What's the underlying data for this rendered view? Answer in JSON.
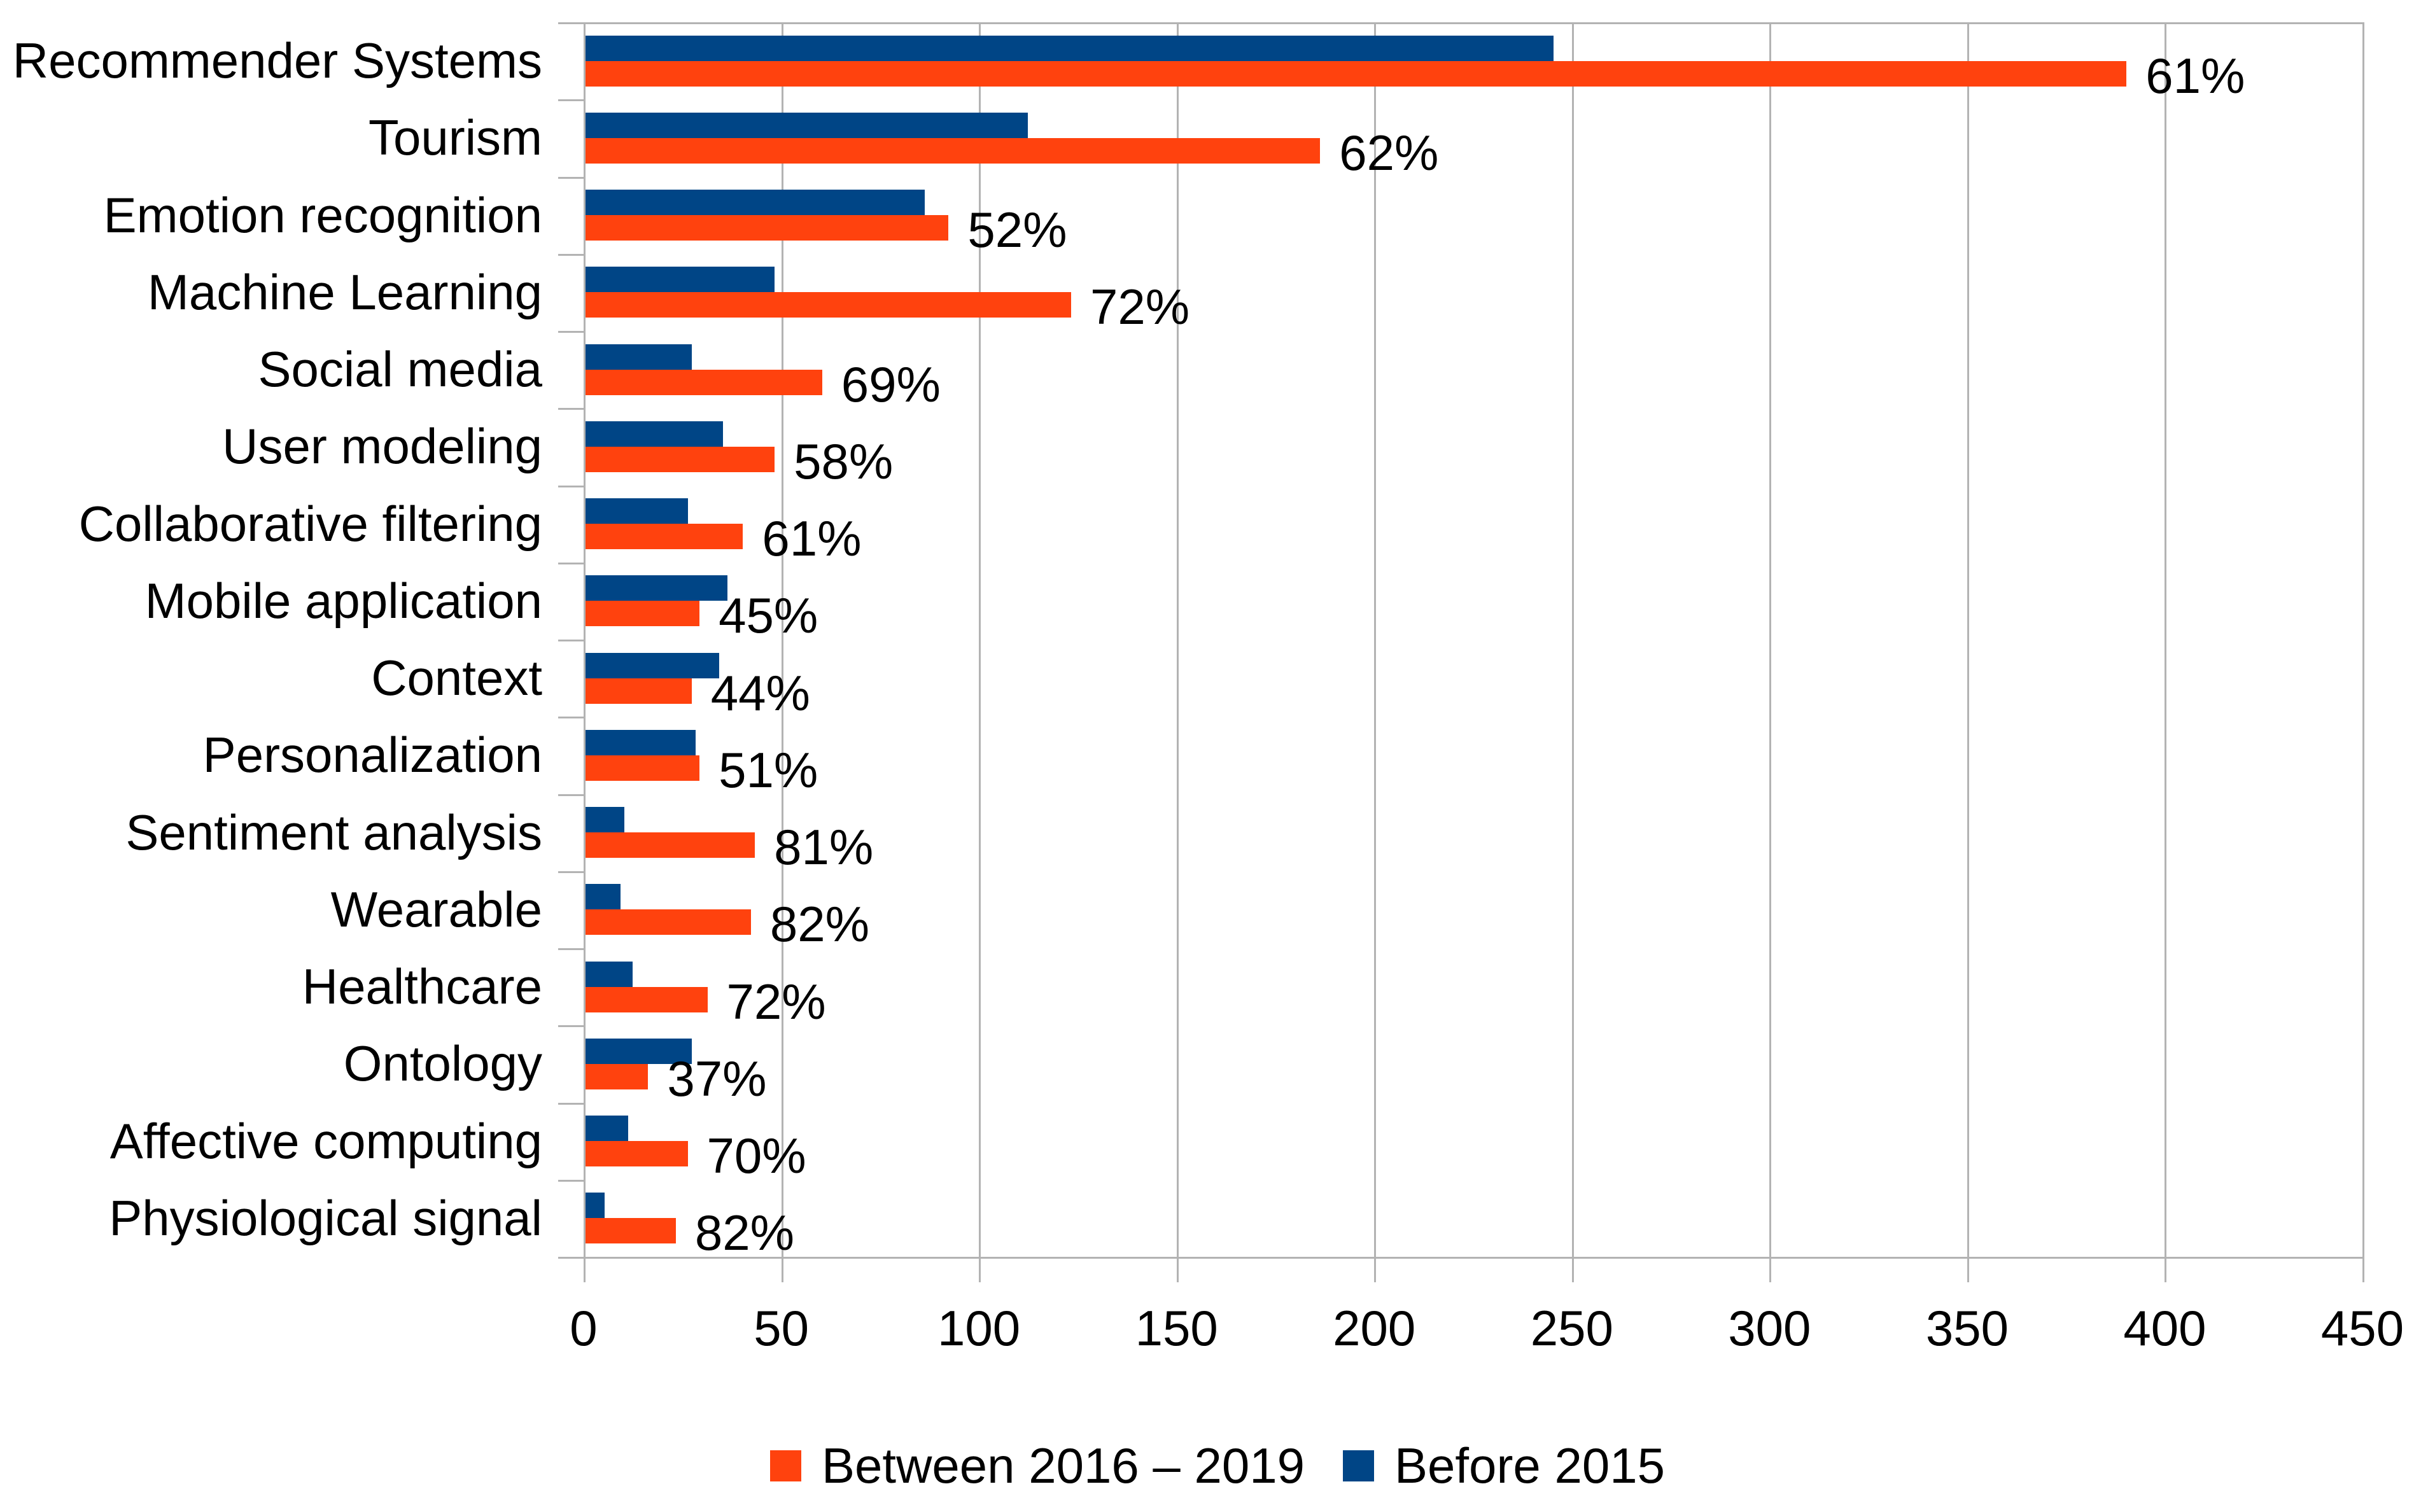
{
  "chart_data": {
    "type": "bar",
    "orientation": "horizontal",
    "title": "",
    "xlabel": "",
    "ylabel": "",
    "xlim": [
      0,
      450
    ],
    "x_ticks": [
      "0",
      "50",
      "100",
      "150",
      "200",
      "250",
      "300",
      "350",
      "400",
      "450"
    ],
    "grid": "vertical",
    "legend_position": "bottom",
    "categories": [
      "Recommender Systems",
      "Tourism",
      "Emotion recognition",
      "Machine Learning",
      "Social media",
      "User modeling",
      "Collaborative filtering",
      "Mobile application",
      "Context",
      "Personalization",
      "Sentiment analysis",
      "Wearable",
      "Healthcare",
      "Ontology",
      "Affective computing",
      "Physiological signal"
    ],
    "series": [
      {
        "name": "Before 2015",
        "color": "#004586",
        "values": [
          245,
          112,
          86,
          48,
          27,
          35,
          26,
          36,
          34,
          28,
          10,
          9,
          12,
          27,
          11,
          5
        ]
      },
      {
        "name": "Between 2016 – 2019",
        "color": "#FF420E",
        "values": [
          390,
          186,
          92,
          123,
          60,
          48,
          40,
          29,
          27,
          29,
          43,
          42,
          31,
          16,
          26,
          23
        ]
      }
    ],
    "bar_labels": [
      "61%",
      "62%",
      "52%",
      "72%",
      "69%",
      "58%",
      "61%",
      "45%",
      "44%",
      "51%",
      "81%",
      "82%",
      "72%",
      "37%",
      "70%",
      "82%"
    ]
  },
  "legend": {
    "items": [
      {
        "label": "Between 2016 – 2019",
        "color": "#FF420E"
      },
      {
        "label": "Before 2015",
        "color": "#004586"
      }
    ]
  },
  "colors": {
    "series_before_2015": "#004586",
    "series_2016_2019": "#FF420E",
    "gridline": "#B3B3B3",
    "text": "#000000",
    "background": "#FFFFFF"
  }
}
